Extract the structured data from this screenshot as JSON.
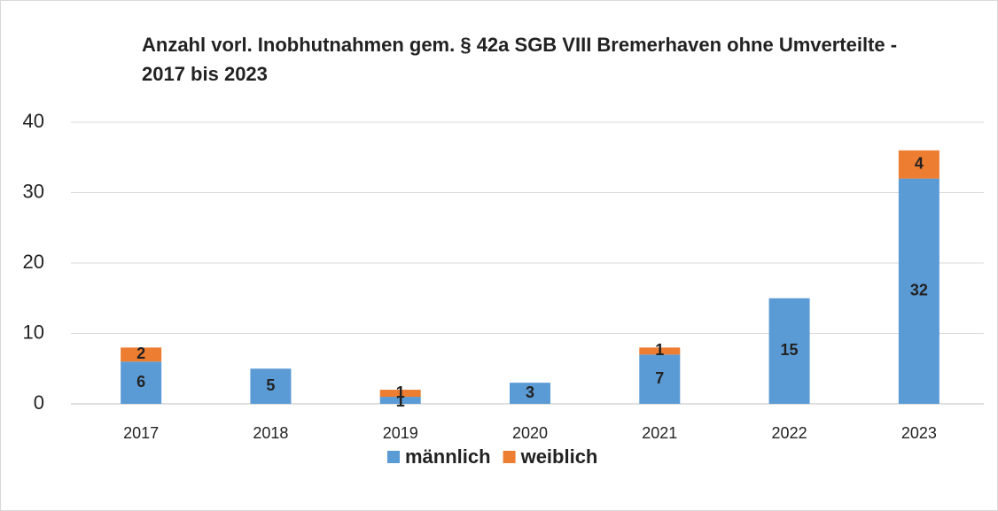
{
  "chart_data": {
    "type": "stacked_bar",
    "title": "Anzahl vorl. Inobhutnahmen gem. § 42a SGB VIII Bremerhaven ohne Umverteilte - 2017 bis 2023",
    "categories": [
      "2017",
      "2018",
      "2019",
      "2020",
      "2021",
      "2022",
      "2023"
    ],
    "series": [
      {
        "name": "männlich",
        "color": "#5b9bd5",
        "values": [
          6,
          5,
          1,
          3,
          7,
          15,
          32
        ]
      },
      {
        "name": "weiblich",
        "color": "#ed7d31",
        "values": [
          2,
          null,
          1,
          null,
          1,
          null,
          4
        ]
      }
    ],
    "ylim": [
      0,
      40
    ],
    "yticks": [
      0,
      10,
      20,
      30,
      40
    ],
    "grid": true,
    "legend": "bottom"
  }
}
